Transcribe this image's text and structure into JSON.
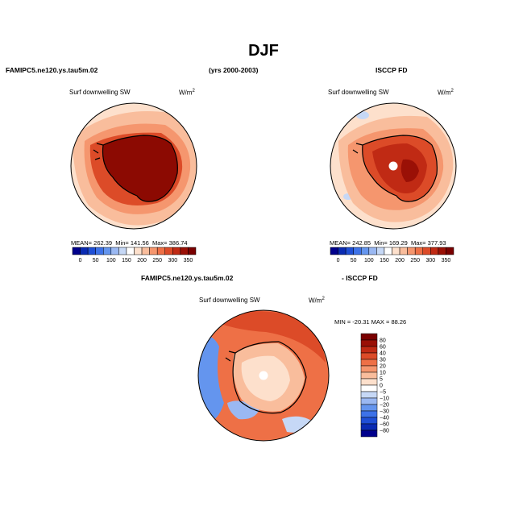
{
  "header": {
    "title": "DJF",
    "model_name": "FAMIPC5.ne120.ys.tau5m.02",
    "years": "(yrs 2000-2003)",
    "obs_name": "ISCCP FD",
    "diff_model": "FAMIPC5.ne120.ys.tau5m.02",
    "diff_obs": "- ISCCP FD"
  },
  "panels": {
    "model": {
      "label": "Surf downwelling SW",
      "units": "W/m",
      "units_sup": "2",
      "mean_label": "MEAN=",
      "mean": "262.39",
      "min_label": "Min=",
      "min": "141.56",
      "max_label": "Max=",
      "max": "386.74"
    },
    "obs": {
      "label": "Surf downwelling SW",
      "units": "W/m",
      "units_sup": "2",
      "mean_label": "MEAN=",
      "mean": "242.85",
      "min_label": "Min=",
      "min": "169.29",
      "max_label": "Max=",
      "max": "377.93"
    },
    "diff": {
      "label": "Surf downwelling SW",
      "units": "W/m",
      "units_sup": "2",
      "minmax_text": "MIN = -20.31  MAX =   88.26"
    }
  },
  "chart_data": [
    {
      "type": "heatmap",
      "name": "model",
      "projection": "south-polar stereographic",
      "title": "Surf downwelling SW",
      "units": "W/m2",
      "mean": 262.39,
      "min": 141.56,
      "max": 386.74,
      "colorbar": {
        "levels": [
          0,
          25,
          50,
          75,
          100,
          125,
          150,
          175,
          200,
          225,
          250,
          275,
          300,
          325,
          350
        ],
        "tick_labels": [
          "0",
          "50",
          "100",
          "150",
          "200",
          "250",
          "300",
          "350"
        ],
        "colors": [
          "#00008c",
          "#0a2bb3",
          "#1f4fd6",
          "#3d72e8",
          "#6495ee",
          "#9ab8f2",
          "#c6d8f6",
          "#ffffff",
          "#fde0cc",
          "#f9bd9c",
          "#f5966e",
          "#ee7046",
          "#dc4b28",
          "#c02a14",
          "#9a1006",
          "#7a0000"
        ],
        "orientation": "horizontal"
      }
    },
    {
      "type": "heatmap",
      "name": "obs",
      "projection": "south-polar stereographic",
      "title": "Surf downwelling SW",
      "units": "W/m2",
      "mean": 242.85,
      "min": 169.29,
      "max": 377.93,
      "colorbar": {
        "levels": [
          0,
          25,
          50,
          75,
          100,
          125,
          150,
          175,
          200,
          225,
          250,
          275,
          300,
          325,
          350
        ],
        "tick_labels": [
          "0",
          "50",
          "100",
          "150",
          "200",
          "250",
          "300",
          "350"
        ],
        "orientation": "horizontal"
      }
    },
    {
      "type": "heatmap",
      "name": "difference",
      "projection": "south-polar stereographic",
      "title": "Surf downwelling SW",
      "units": "W/m2",
      "min": -20.31,
      "max": 88.26,
      "colorbar": {
        "levels": [
          -80,
          -60,
          -40,
          -30,
          -20,
          -10,
          -5,
          0,
          5,
          10,
          20,
          30,
          40,
          60,
          80
        ],
        "tick_labels": [
          "80",
          "60",
          "40",
          "30",
          "20",
          "10",
          "5",
          "0",
          "−5",
          "−10",
          "−20",
          "−30",
          "−40",
          "−60",
          "−80"
        ],
        "colors": [
          "#7a0000",
          "#9a1006",
          "#c02a14",
          "#dc4b28",
          "#ee7046",
          "#f5966e",
          "#f9bd9c",
          "#fde0cc",
          "#ffffff",
          "#c6d8f6",
          "#9ab8f2",
          "#6495ee",
          "#3d72e8",
          "#1f4fd6",
          "#0a2bb3",
          "#00008c"
        ],
        "orientation": "vertical"
      }
    }
  ]
}
